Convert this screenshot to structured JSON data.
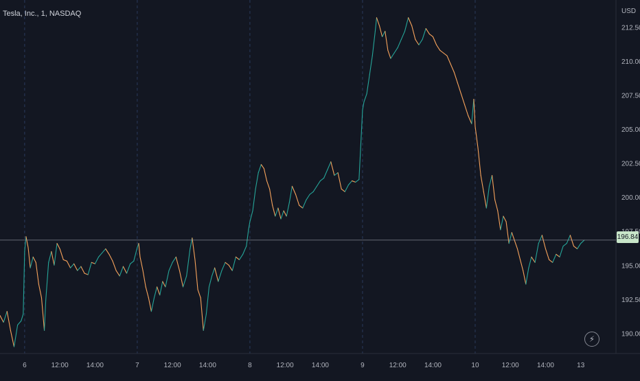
{
  "header": {
    "symbol": "Tesla, Inc., 1, NASDAQ"
  },
  "axis": {
    "currency": "USD"
  },
  "last_price": {
    "label": "196.84",
    "value": 196.84
  },
  "icons": {
    "replay": "lightning-icon"
  },
  "colors": {
    "background": "#131722",
    "up": "#26a69a",
    "down": "#f7a35c",
    "neutral": "#d1d4dc",
    "grid": "#2a3a5c",
    "price_line": "#9598a1",
    "price_tag": "#c8e6c9"
  },
  "chart_data": {
    "type": "line",
    "y_axis": {
      "min": 188.5,
      "max": 214.5,
      "ticks": [
        212.5,
        210,
        207.5,
        205,
        202.5,
        200,
        197.5,
        195,
        192.5,
        190
      ],
      "tick_labels": [
        "212.50",
        "210.00",
        "207.50",
        "205.00",
        "202.50",
        "200.00",
        "197.50",
        "195.00",
        "192.50",
        "190.00"
      ]
    },
    "x_axis": {
      "ticks": [
        {
          "t": 0.0,
          "label": "6",
          "day_start": true
        },
        {
          "t": 0.5,
          "label": "12:00"
        },
        {
          "t": 1.0,
          "label": "14:00"
        },
        {
          "t": 1.6,
          "label": "7",
          "day_start": true
        },
        {
          "t": 2.1,
          "label": "12:00"
        },
        {
          "t": 2.6,
          "label": "14:00"
        },
        {
          "t": 3.2,
          "label": "8",
          "day_start": true
        },
        {
          "t": 3.7,
          "label": "12:00"
        },
        {
          "t": 4.2,
          "label": "14:00"
        },
        {
          "t": 4.8,
          "label": "9",
          "day_start": true
        },
        {
          "t": 5.3,
          "label": "12:00"
        },
        {
          "t": 5.8,
          "label": "14:00"
        },
        {
          "t": 6.4,
          "label": "10",
          "day_start": true
        },
        {
          "t": 6.9,
          "label": "12:00"
        },
        {
          "t": 7.4,
          "label": "14:00"
        },
        {
          "t": 7.9,
          "label": "13"
        }
      ],
      "min": -0.35,
      "max": 8.4
    },
    "series": [
      {
        "points": [
          [
            -0.35,
            191.3
          ],
          [
            -0.3,
            190.8
          ],
          [
            -0.25,
            191.6
          ],
          [
            -0.2,
            190.2
          ],
          [
            -0.15,
            189.0
          ],
          [
            -0.1,
            190.6
          ],
          [
            -0.05,
            190.9
          ],
          [
            -0.02,
            191.4
          ],
          [
            0.0,
            196.0
          ],
          [
            0.02,
            197.1
          ],
          [
            0.05,
            196.3
          ],
          [
            0.08,
            194.8
          ],
          [
            0.12,
            195.6
          ],
          [
            0.16,
            195.2
          ],
          [
            0.2,
            193.6
          ],
          [
            0.24,
            192.6
          ],
          [
            0.28,
            190.2
          ],
          [
            0.3,
            192.4
          ],
          [
            0.34,
            195.2
          ],
          [
            0.38,
            196.0
          ],
          [
            0.42,
            195.0
          ],
          [
            0.46,
            196.6
          ],
          [
            0.5,
            196.2
          ],
          [
            0.55,
            195.4
          ],
          [
            0.6,
            195.3
          ],
          [
            0.65,
            194.8
          ],
          [
            0.7,
            195.1
          ],
          [
            0.75,
            194.6
          ],
          [
            0.8,
            194.9
          ],
          [
            0.85,
            194.4
          ],
          [
            0.9,
            194.3
          ],
          [
            0.95,
            195.2
          ],
          [
            1.0,
            195.1
          ],
          [
            1.05,
            195.6
          ],
          [
            1.1,
            195.9
          ],
          [
            1.15,
            196.2
          ],
          [
            1.2,
            195.8
          ],
          [
            1.25,
            195.3
          ],
          [
            1.3,
            194.6
          ],
          [
            1.35,
            194.2
          ],
          [
            1.4,
            194.9
          ],
          [
            1.45,
            194.4
          ],
          [
            1.5,
            195.1
          ],
          [
            1.55,
            195.3
          ],
          [
            1.6,
            196.3
          ],
          [
            1.62,
            196.6
          ],
          [
            1.64,
            195.6
          ],
          [
            1.68,
            194.6
          ],
          [
            1.72,
            193.4
          ],
          [
            1.76,
            192.6
          ],
          [
            1.8,
            191.6
          ],
          [
            1.84,
            192.6
          ],
          [
            1.88,
            193.4
          ],
          [
            1.92,
            192.8
          ],
          [
            1.96,
            193.8
          ],
          [
            2.0,
            193.4
          ],
          [
            2.05,
            194.6
          ],
          [
            2.1,
            195.2
          ],
          [
            2.15,
            195.6
          ],
          [
            2.2,
            194.6
          ],
          [
            2.25,
            193.4
          ],
          [
            2.3,
            194.2
          ],
          [
            2.35,
            196.2
          ],
          [
            2.38,
            197.0
          ],
          [
            2.42,
            195.4
          ],
          [
            2.46,
            193.2
          ],
          [
            2.5,
            192.6
          ],
          [
            2.54,
            190.2
          ],
          [
            2.58,
            191.4
          ],
          [
            2.62,
            193.4
          ],
          [
            2.66,
            194.2
          ],
          [
            2.7,
            194.8
          ],
          [
            2.75,
            193.8
          ],
          [
            2.8,
            194.6
          ],
          [
            2.85,
            195.2
          ],
          [
            2.9,
            195.0
          ],
          [
            2.95,
            194.6
          ],
          [
            3.0,
            195.6
          ],
          [
            3.05,
            195.4
          ],
          [
            3.1,
            195.8
          ],
          [
            3.15,
            196.4
          ],
          [
            3.18,
            197.6
          ],
          [
            3.2,
            198.2
          ],
          [
            3.24,
            199.0
          ],
          [
            3.28,
            200.6
          ],
          [
            3.32,
            201.8
          ],
          [
            3.36,
            202.4
          ],
          [
            3.4,
            202.1
          ],
          [
            3.44,
            201.2
          ],
          [
            3.48,
            200.6
          ],
          [
            3.52,
            199.4
          ],
          [
            3.56,
            198.6
          ],
          [
            3.6,
            199.2
          ],
          [
            3.64,
            198.4
          ],
          [
            3.68,
            199.0
          ],
          [
            3.72,
            198.6
          ],
          [
            3.76,
            199.6
          ],
          [
            3.8,
            200.8
          ],
          [
            3.85,
            200.2
          ],
          [
            3.9,
            199.4
          ],
          [
            3.95,
            199.2
          ],
          [
            4.0,
            199.8
          ],
          [
            4.05,
            200.2
          ],
          [
            4.1,
            200.4
          ],
          [
            4.15,
            200.8
          ],
          [
            4.2,
            201.2
          ],
          [
            4.25,
            201.4
          ],
          [
            4.3,
            202.0
          ],
          [
            4.35,
            202.6
          ],
          [
            4.4,
            201.6
          ],
          [
            4.45,
            201.8
          ],
          [
            4.5,
            200.6
          ],
          [
            4.55,
            200.4
          ],
          [
            4.6,
            200.9
          ],
          [
            4.65,
            201.2
          ],
          [
            4.7,
            201.1
          ],
          [
            4.75,
            201.3
          ],
          [
            4.8,
            206.4
          ],
          [
            4.82,
            207.0
          ],
          [
            4.86,
            207.6
          ],
          [
            4.9,
            209.0
          ],
          [
            4.94,
            210.4
          ],
          [
            4.98,
            212.2
          ],
          [
            5.0,
            213.2
          ],
          [
            5.04,
            212.6
          ],
          [
            5.08,
            211.8
          ],
          [
            5.12,
            212.2
          ],
          [
            5.16,
            210.8
          ],
          [
            5.2,
            210.2
          ],
          [
            5.25,
            210.6
          ],
          [
            5.3,
            211.0
          ],
          [
            5.35,
            211.6
          ],
          [
            5.4,
            212.2
          ],
          [
            5.45,
            213.2
          ],
          [
            5.5,
            212.6
          ],
          [
            5.55,
            211.6
          ],
          [
            5.6,
            211.2
          ],
          [
            5.65,
            211.6
          ],
          [
            5.7,
            212.4
          ],
          [
            5.75,
            212.0
          ],
          [
            5.8,
            211.8
          ],
          [
            5.85,
            211.2
          ],
          [
            5.9,
            210.8
          ],
          [
            5.95,
            210.6
          ],
          [
            6.0,
            210.4
          ],
          [
            6.05,
            209.8
          ],
          [
            6.1,
            209.2
          ],
          [
            6.15,
            208.4
          ],
          [
            6.2,
            207.6
          ],
          [
            6.25,
            206.8
          ],
          [
            6.3,
            206.0
          ],
          [
            6.35,
            205.4
          ],
          [
            6.38,
            207.2
          ],
          [
            6.4,
            205.2
          ],
          [
            6.44,
            203.6
          ],
          [
            6.48,
            201.6
          ],
          [
            6.52,
            200.4
          ],
          [
            6.56,
            199.2
          ],
          [
            6.6,
            200.8
          ],
          [
            6.64,
            201.6
          ],
          [
            6.68,
            199.8
          ],
          [
            6.72,
            199.0
          ],
          [
            6.76,
            197.6
          ],
          [
            6.8,
            198.6
          ],
          [
            6.84,
            198.2
          ],
          [
            6.88,
            196.6
          ],
          [
            6.92,
            197.4
          ],
          [
            6.96,
            196.8
          ],
          [
            7.0,
            196.2
          ],
          [
            7.04,
            195.4
          ],
          [
            7.08,
            194.6
          ],
          [
            7.12,
            193.6
          ],
          [
            7.16,
            194.8
          ],
          [
            7.2,
            195.6
          ],
          [
            7.25,
            195.2
          ],
          [
            7.3,
            196.6
          ],
          [
            7.35,
            197.2
          ],
          [
            7.4,
            196.2
          ],
          [
            7.45,
            195.4
          ],
          [
            7.5,
            195.2
          ],
          [
            7.55,
            195.8
          ],
          [
            7.6,
            195.6
          ],
          [
            7.65,
            196.4
          ],
          [
            7.7,
            196.6
          ],
          [
            7.75,
            197.2
          ],
          [
            7.8,
            196.4
          ],
          [
            7.85,
            196.2
          ],
          [
            7.9,
            196.6
          ],
          [
            7.95,
            196.84
          ]
        ]
      }
    ],
    "grid": "vertical-dashed-at-day-starts",
    "legend": "none"
  }
}
